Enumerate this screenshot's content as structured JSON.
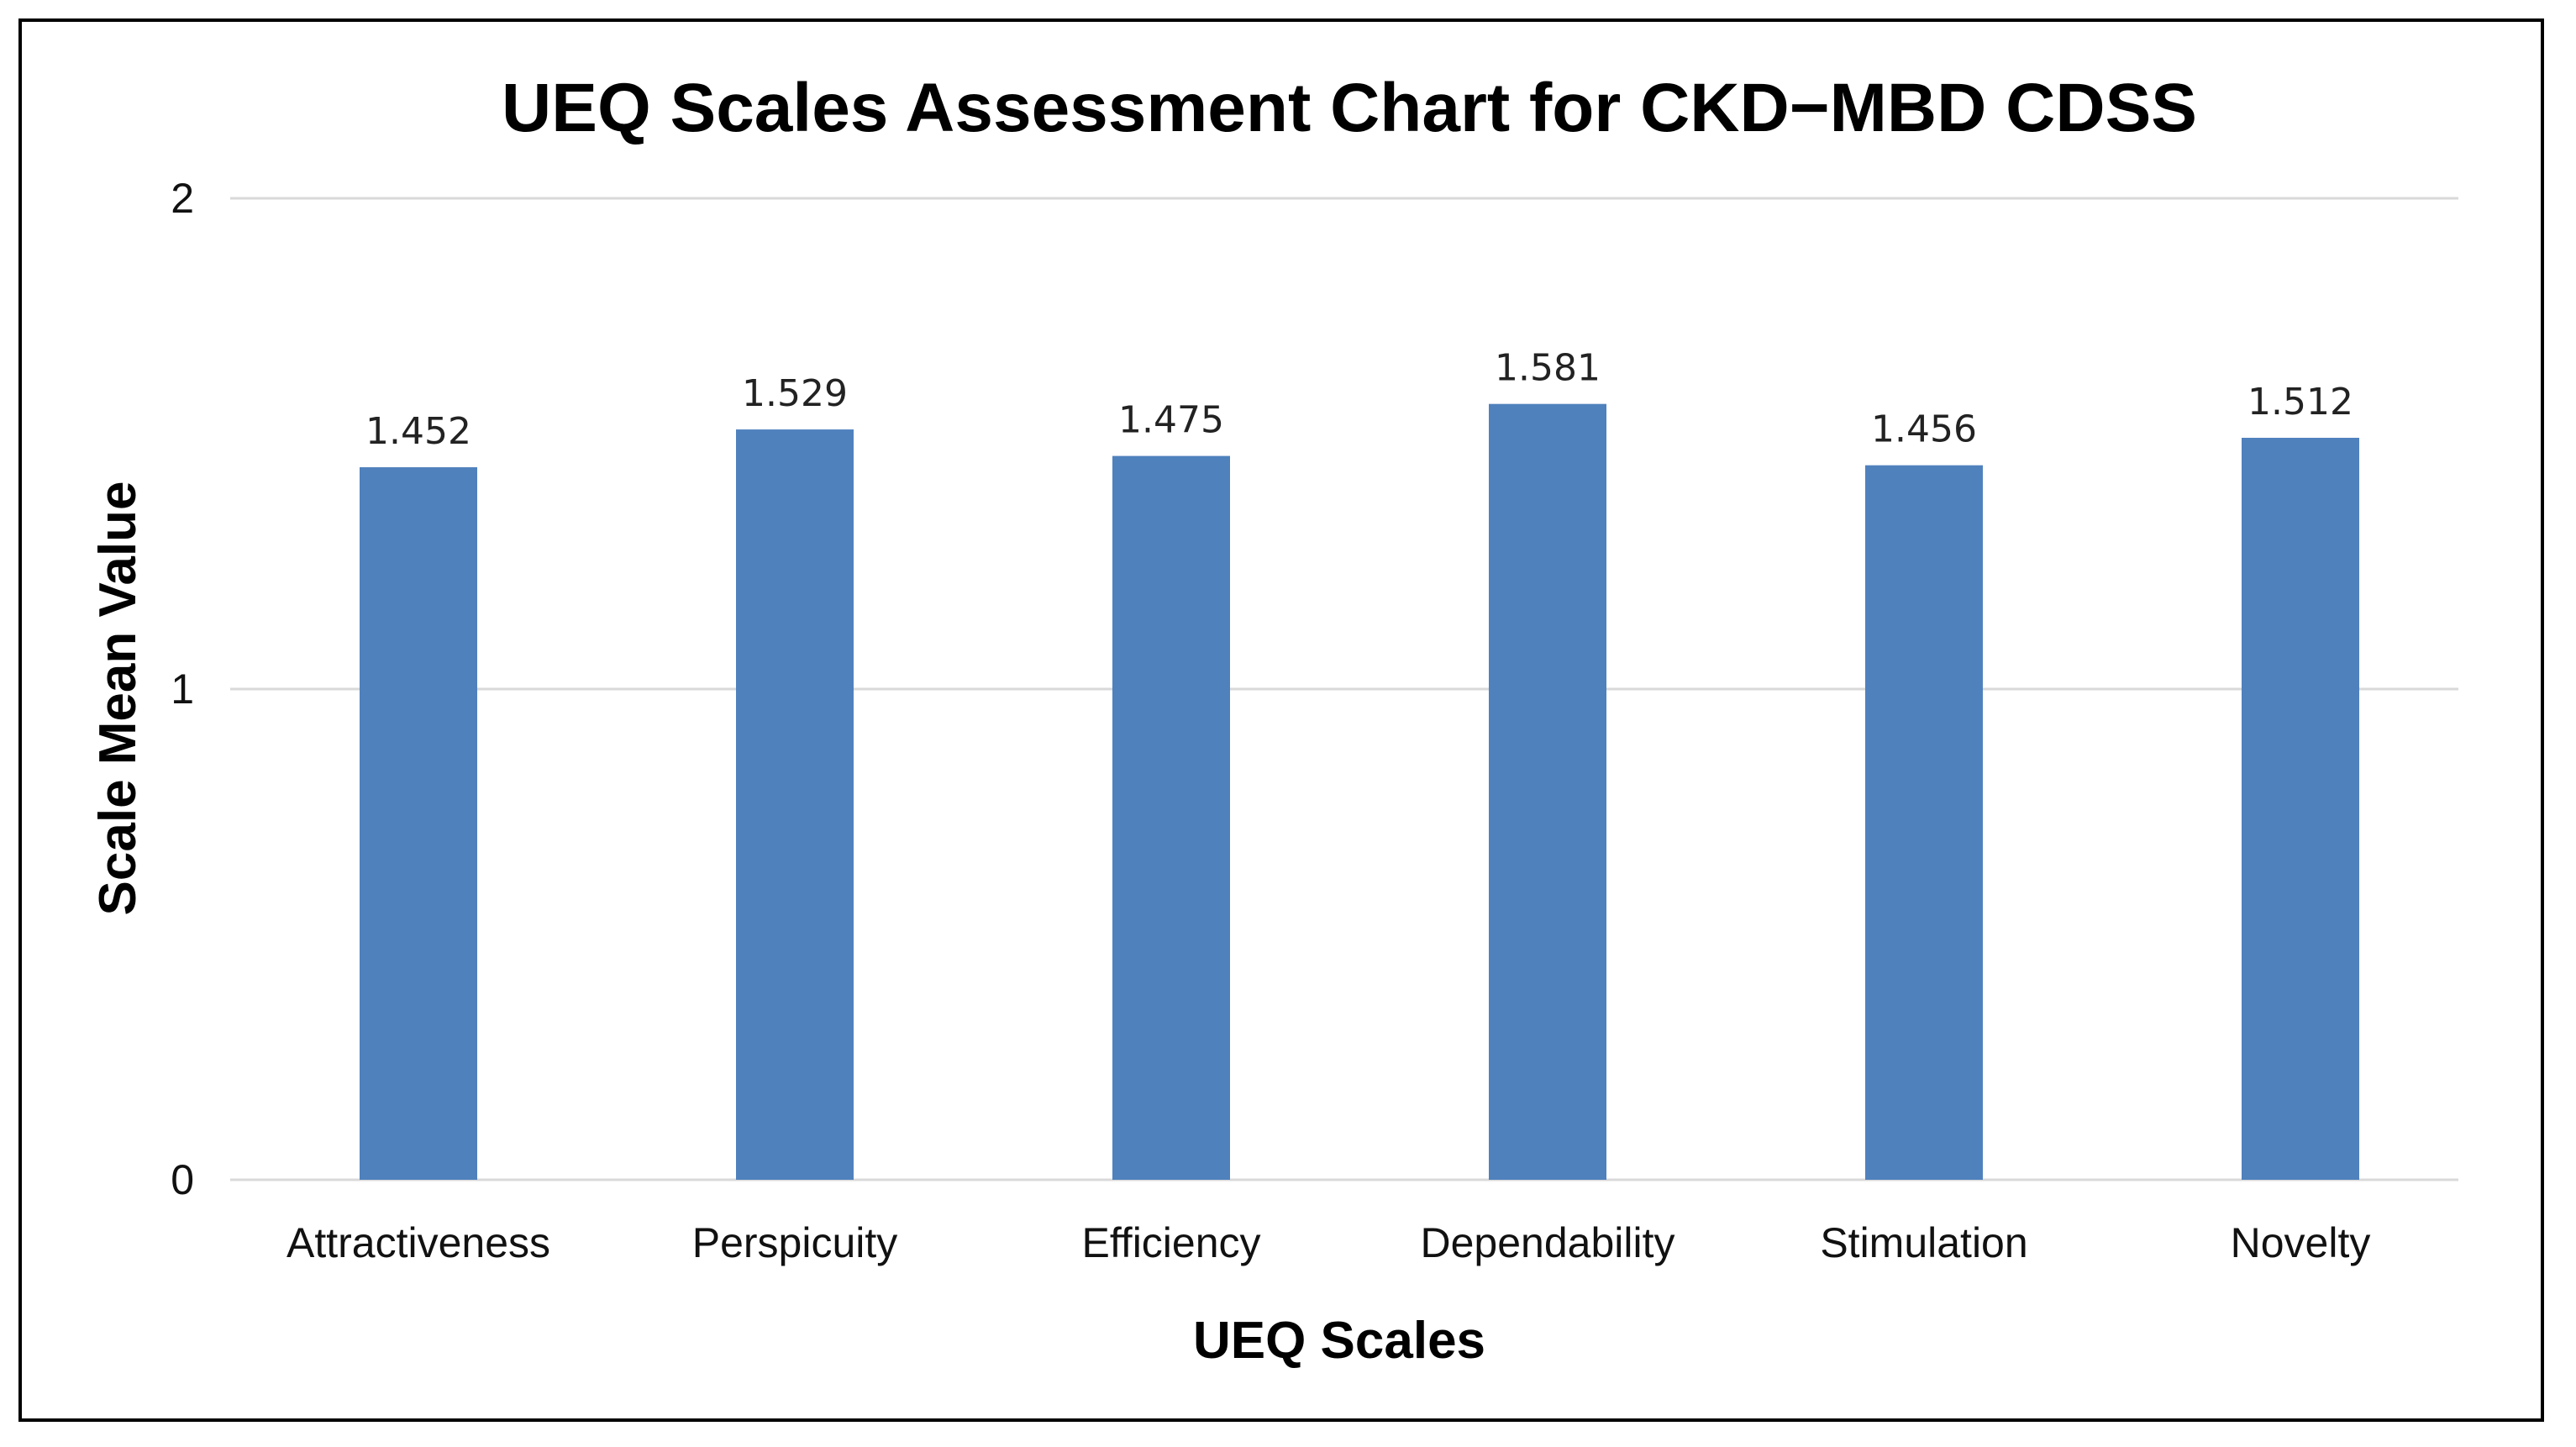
{
  "chart_data": {
    "type": "bar",
    "title": "UEQ Scales Assessment  Chart for CKD−MBD CDSS",
    "xlabel": "UEQ Scales",
    "ylabel": "Scale Mean Value",
    "categories": [
      "Attractiveness",
      "Perspicuity",
      "Efficiency",
      "Dependability",
      "Stimulation",
      "Novelty"
    ],
    "values": [
      1.452,
      1.529,
      1.475,
      1.581,
      1.456,
      1.512
    ],
    "value_labels": [
      "1.452",
      "1.529",
      "1.475",
      "1.581",
      "1.456",
      "1.512"
    ],
    "ylim": [
      0,
      2
    ],
    "yticks": [
      0,
      1,
      2
    ],
    "ytick_labels": [
      "0",
      "1",
      "2"
    ],
    "grid": true,
    "legend": "none",
    "bar_color": "#4f81bd"
  }
}
